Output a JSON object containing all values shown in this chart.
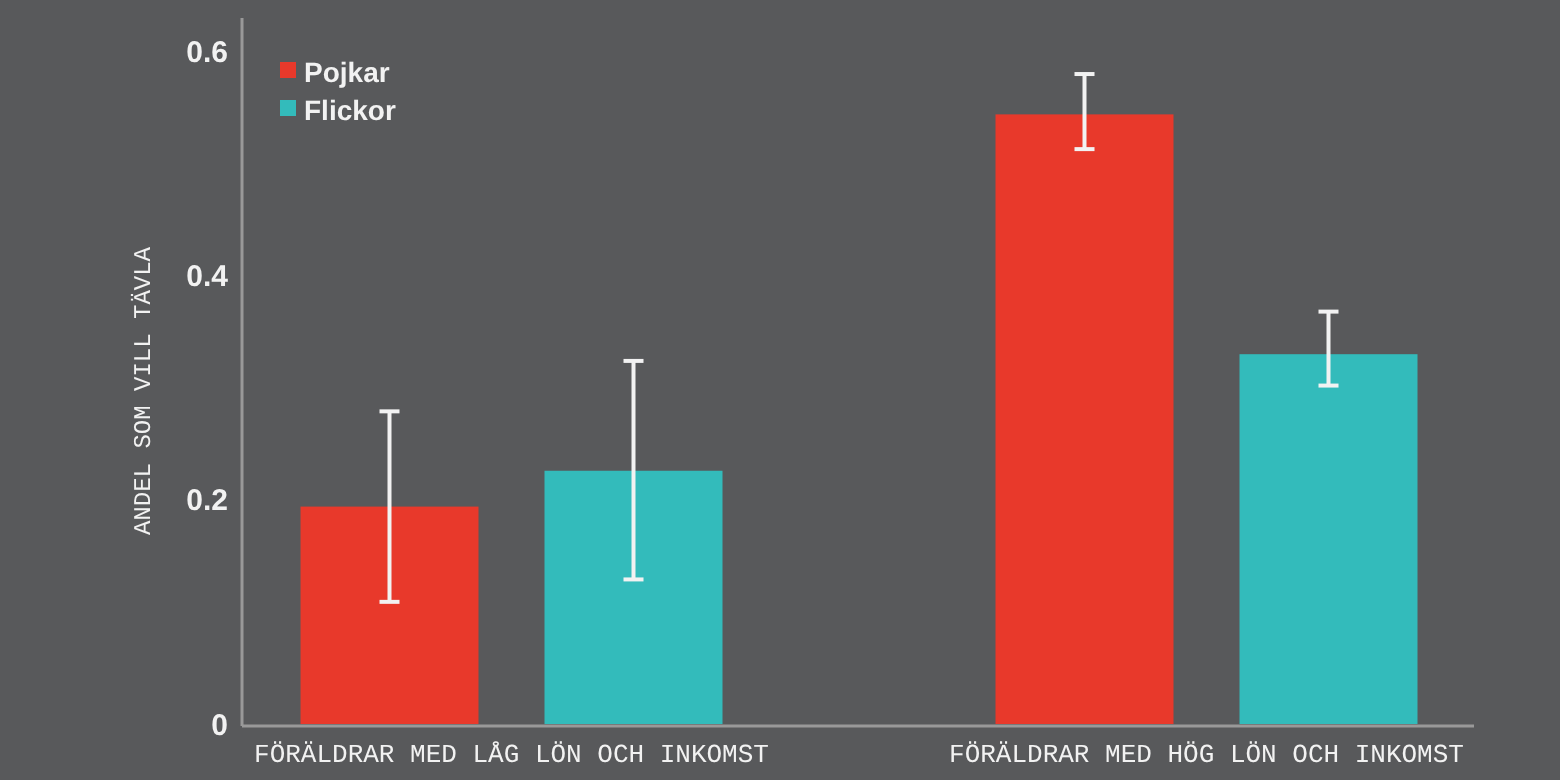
{
  "chart_data": {
    "type": "bar",
    "ylabel": "ANDEL SOM VILL TÄVLA",
    "categories": [
      "FÖRÄLDRAR MED LÅG LÖN OCH INKOMST",
      "FÖRÄLDRAR MED HÖG LÖN OCH INKOMST"
    ],
    "series": [
      {
        "name": "Pojkar",
        "color": "#e8392b",
        "values": [
          0.194,
          0.544
        ],
        "errors": [
          [
            0.109,
            0.279
          ],
          [
            0.513,
            0.58
          ]
        ]
      },
      {
        "name": "Flickor",
        "color": "#33bbbb",
        "values": [
          0.226,
          0.33
        ],
        "errors": [
          [
            0.129,
            0.324
          ],
          [
            0.302,
            0.368
          ]
        ]
      }
    ],
    "ylim": [
      0,
      0.63
    ],
    "yticks": [
      {
        "value": 0,
        "label": "0"
      },
      0.2,
      0.4,
      0.6
    ],
    "grid": false,
    "legend": "top left"
  }
}
